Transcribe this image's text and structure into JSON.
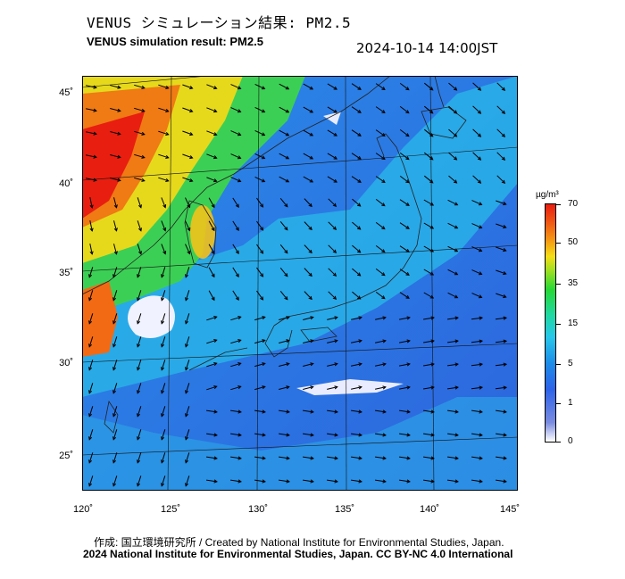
{
  "header": {
    "title_jp": "VENUS シミュレーション結果: PM2.5",
    "title_en": "VENUS simulation result: PM2.5",
    "timestamp": "2024-10-14 14:00JST"
  },
  "map": {
    "lat_labels": [
      "45˚",
      "40˚",
      "35˚",
      "30˚",
      "25˚"
    ],
    "lon_labels": [
      "120˚",
      "125˚",
      "130˚",
      "135˚",
      "140˚",
      "145˚"
    ],
    "lat_values": [
      45,
      40,
      35,
      30,
      25
    ],
    "lon_values": [
      120,
      125,
      130,
      135,
      140,
      145
    ],
    "region": "East Asia / Japan",
    "layers": [
      "PM2.5 concentration field",
      "wind vectors",
      "coastlines",
      "graticule"
    ]
  },
  "colorbar": {
    "unit": "µg/m³",
    "ticks": [
      "70",
      "50",
      "35",
      "15",
      "5",
      "1",
      "0"
    ],
    "colors": {
      "0": "#ffffff",
      "1": "#2d63e8",
      "5": "#27c7ea",
      "15": "#26d836",
      "35": "#f5de16",
      "50": "#f05a14",
      "70": "#e81e10"
    }
  },
  "footer": {
    "credit_jp": "作成: 国立環境研究所 / Created by National Institute for Environmental Studies, Japan.",
    "credit_en": "2024 National Institute for Environmental Studies, Japan. CC BY-NC 4.0 International"
  }
}
